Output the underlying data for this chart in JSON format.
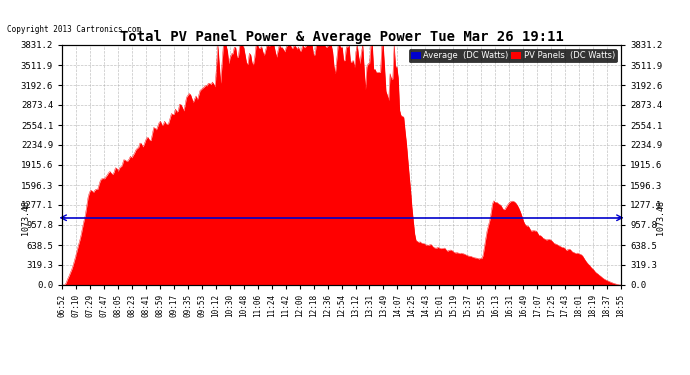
{
  "title": "Total PV Panel Power & Average Power Tue Mar 26 19:11",
  "copyright": "Copyright 2013 Cartronics.com",
  "avg_value": 1073.48,
  "y_max": 3831.2,
  "y_min": 0.0,
  "y_ticks": [
    0.0,
    319.3,
    638.5,
    957.8,
    1277.1,
    1596.3,
    1915.6,
    2234.9,
    2554.1,
    2873.4,
    3192.6,
    3511.9,
    3831.2
  ],
  "bg_color": "#ffffff",
  "plot_bg_color": "#ffffff",
  "grid_color": "#aaaaaa",
  "fill_color": "#ff0000",
  "line_color": "#0000cc",
  "legend_avg_bg": "#0000cc",
  "legend_pv_bg": "#ff0000",
  "x_labels": [
    "06:52",
    "07:10",
    "07:29",
    "07:47",
    "08:05",
    "08:23",
    "08:41",
    "08:59",
    "09:17",
    "09:35",
    "09:53",
    "10:12",
    "10:30",
    "10:48",
    "11:06",
    "11:24",
    "11:42",
    "12:00",
    "12:18",
    "12:36",
    "12:54",
    "13:12",
    "13:31",
    "13:49",
    "14:07",
    "14:25",
    "14:43",
    "15:01",
    "15:19",
    "15:37",
    "15:55",
    "16:13",
    "16:31",
    "16:49",
    "17:07",
    "17:25",
    "17:43",
    "18:01",
    "18:19",
    "18:37",
    "18:55"
  ],
  "avg_line_label": "Average  (DC Watts)",
  "pv_line_label": "PV Panels  (DC Watts)"
}
